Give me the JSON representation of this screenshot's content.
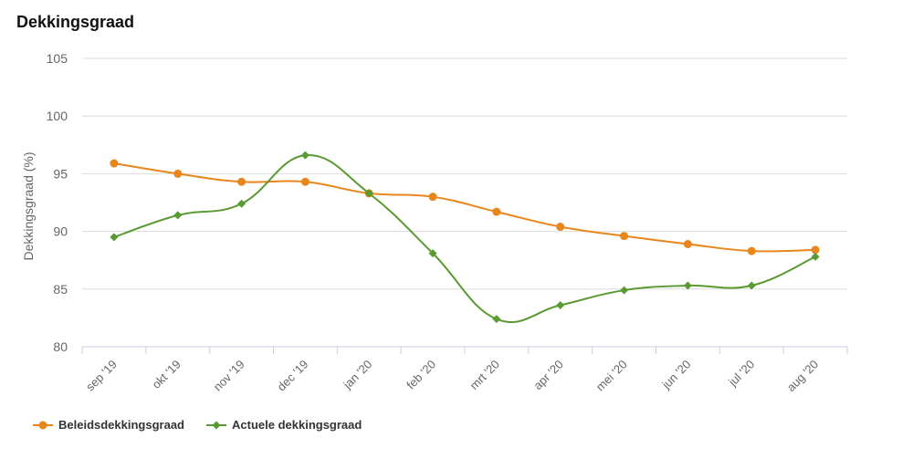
{
  "title": "Dekkingsgraad",
  "chart_data": {
    "type": "line",
    "title": "Dekkingsgraad",
    "ylabel": "Dekkingsgraad (%)",
    "xlabel": "",
    "ylim": [
      80,
      105
    ],
    "yticks": [
      80,
      85,
      90,
      95,
      100,
      105
    ],
    "categories": [
      "sep '19",
      "okt '19",
      "nov '19",
      "dec '19",
      "jan '20",
      "feb '20",
      "mrt '20",
      "apr '20",
      "mei '20",
      "jun '20",
      "jul '20",
      "aug '20"
    ],
    "series": [
      {
        "name": "Beleidsdekkingsgraad",
        "color": "#e8861c",
        "marker": "circle",
        "values": [
          95.9,
          95.0,
          94.3,
          94.3,
          93.3,
          93.0,
          91.7,
          90.4,
          89.6,
          88.9,
          88.3,
          88.4
        ]
      },
      {
        "name": "Actuele dekkingsgraad",
        "color": "#5a9a32",
        "marker": "diamond",
        "values": [
          89.5,
          91.4,
          92.4,
          96.6,
          93.3,
          88.1,
          82.4,
          83.6,
          84.9,
          85.3,
          85.3,
          87.8
        ]
      }
    ],
    "grid": true,
    "legend_position": "bottom-left"
  }
}
